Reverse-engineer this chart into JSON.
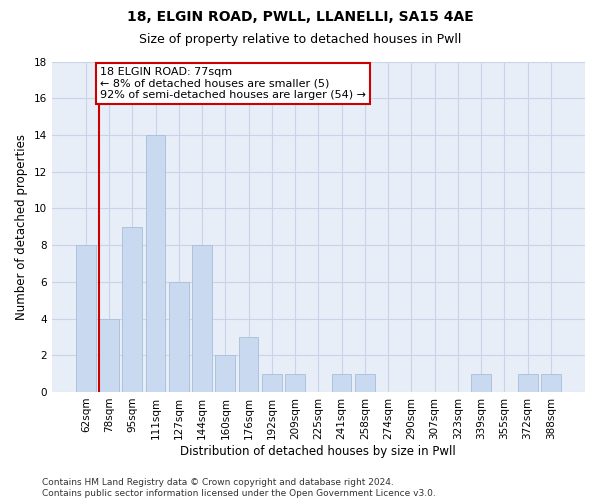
{
  "title": "18, ELGIN ROAD, PWLL, LLANELLI, SA15 4AE",
  "subtitle": "Size of property relative to detached houses in Pwll",
  "xlabel": "Distribution of detached houses by size in Pwll",
  "ylabel": "Number of detached properties",
  "categories": [
    "62sqm",
    "78sqm",
    "95sqm",
    "111sqm",
    "127sqm",
    "144sqm",
    "160sqm",
    "176sqm",
    "192sqm",
    "209sqm",
    "225sqm",
    "241sqm",
    "258sqm",
    "274sqm",
    "290sqm",
    "307sqm",
    "323sqm",
    "339sqm",
    "355sqm",
    "372sqm",
    "388sqm"
  ],
  "values": [
    8,
    4,
    9,
    14,
    6,
    8,
    2,
    3,
    1,
    1,
    0,
    1,
    1,
    0,
    0,
    0,
    0,
    1,
    0,
    1,
    1
  ],
  "bar_color": "#c9d9f0",
  "bar_edge_color": "#a8bfd8",
  "annotation_line1": "18 ELGIN ROAD: 77sqm",
  "annotation_line2": "← 8% of detached houses are smaller (5)",
  "annotation_line3": "92% of semi-detached houses are larger (54) →",
  "annotation_box_color": "#ffffff",
  "annotation_box_edge_color": "#cc0000",
  "red_line_color": "#cc0000",
  "ylim": [
    0,
    18
  ],
  "yticks": [
    0,
    2,
    4,
    6,
    8,
    10,
    12,
    14,
    16,
    18
  ],
  "grid_color": "#c8d4e8",
  "background_color": "#e8eef8",
  "footer_text": "Contains HM Land Registry data © Crown copyright and database right 2024.\nContains public sector information licensed under the Open Government Licence v3.0.",
  "title_fontsize": 10,
  "subtitle_fontsize": 9,
  "axis_label_fontsize": 8.5,
  "tick_fontsize": 7.5,
  "annotation_fontsize": 8,
  "footer_fontsize": 6.5
}
